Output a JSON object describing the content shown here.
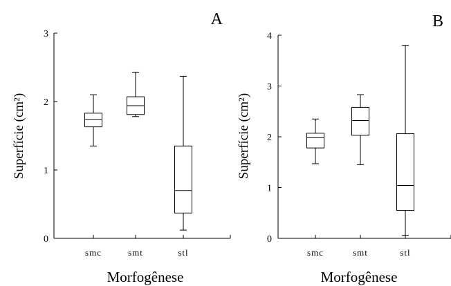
{
  "chart_data": [
    {
      "type": "box",
      "panel_label": "A",
      "xlabel": "Morfogênese",
      "ylabel": "Superfície (cm²)",
      "ylim": [
        0,
        3
      ],
      "yticks": [
        0,
        1,
        2,
        3
      ],
      "categories": [
        "smc",
        "smt",
        "stl"
      ],
      "boxes": [
        {
          "category": "smc",
          "min": 1.35,
          "q1": 1.63,
          "median": 1.74,
          "q3": 1.83,
          "max": 2.1
        },
        {
          "category": "smt",
          "min": 1.78,
          "q1": 1.81,
          "median": 1.94,
          "q3": 2.07,
          "max": 2.43
        },
        {
          "category": "stl",
          "min": 0.12,
          "q1": 0.37,
          "median": 0.7,
          "q3": 1.35,
          "max": 2.37
        }
      ]
    },
    {
      "type": "box",
      "panel_label": "B",
      "xlabel": "Morfogênese",
      "ylabel": "Superfície (cm²)",
      "ylim": [
        0,
        4
      ],
      "yticks": [
        0,
        1,
        2,
        3,
        4
      ],
      "categories": [
        "smc",
        "smt",
        "stl"
      ],
      "boxes": [
        {
          "category": "smc",
          "min": 1.47,
          "q1": 1.78,
          "median": 1.98,
          "q3": 2.07,
          "max": 2.35
        },
        {
          "category": "smt",
          "min": 1.45,
          "q1": 2.03,
          "median": 2.32,
          "q3": 2.58,
          "max": 2.83
        },
        {
          "category": "stl",
          "min": 0.06,
          "q1": 0.55,
          "median": 1.04,
          "q3": 2.06,
          "max": 3.8
        }
      ]
    }
  ]
}
